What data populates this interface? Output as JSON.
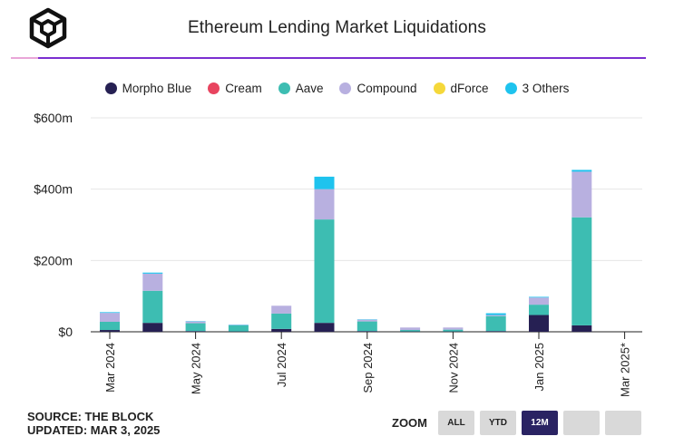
{
  "header": {
    "title": "Ethereum Lending Market Liquidations"
  },
  "legend": [
    {
      "label": "Morpho Blue",
      "color": "#262053"
    },
    {
      "label": "Cream",
      "color": "#e8445f"
    },
    {
      "label": "Aave",
      "color": "#3dbdb2"
    },
    {
      "label": "Compound",
      "color": "#b8b0e0"
    },
    {
      "label": "dForce",
      "color": "#f5d83a"
    },
    {
      "label": "3 Others",
      "color": "#1ec3ee"
    }
  ],
  "footer": {
    "source": "SOURCE: THE BLOCK",
    "updated": "UPDATED: MAR 3, 2025"
  },
  "zoom": {
    "label": "ZOOM",
    "buttons": [
      "ALL",
      "YTD",
      "12M"
    ],
    "active": "12M"
  },
  "chart_data": {
    "type": "bar",
    "stacked": true,
    "title": "Ethereum Lending Market Liquidations",
    "ylabel": "",
    "ylim": [
      0,
      600
    ],
    "yticks": [
      "$0",
      "$200m",
      "$400m",
      "$600m"
    ],
    "xtick_labels": [
      "Mar 2024",
      "May 2024",
      "Jul 2024",
      "Sep 2024",
      "Nov 2024",
      "Jan 2025",
      "Mar 2025*"
    ],
    "categories": [
      "Mar 2024",
      "Apr 2024",
      "May 2024",
      "Jun 2024",
      "Jul 2024",
      "Aug 2024",
      "Sep 2024",
      "Oct 2024",
      "Nov 2024",
      "Dec 2024",
      "Jan 2025",
      "Feb 2025"
    ],
    "series": [
      {
        "name": "Morpho Blue",
        "color": "#262053",
        "values": [
          5,
          25,
          2,
          1,
          8,
          25,
          2,
          1,
          1,
          2,
          47,
          18
        ]
      },
      {
        "name": "Cream",
        "color": "#e8445f",
        "values": [
          0,
          0,
          0,
          0,
          0,
          0,
          0,
          0,
          0,
          0,
          0,
          0
        ]
      },
      {
        "name": "Aave",
        "color": "#3dbdb2",
        "values": [
          23,
          90,
          22,
          17,
          43,
          290,
          27,
          4,
          5,
          42,
          29,
          303
        ]
      },
      {
        "name": "Compound",
        "color": "#b8b0e0",
        "values": [
          25,
          48,
          5,
          1,
          22,
          85,
          5,
          7,
          6,
          3,
          20,
          128
        ]
      },
      {
        "name": "dForce",
        "color": "#f5d83a",
        "values": [
          0,
          0,
          0,
          0,
          0,
          0,
          0,
          0,
          0,
          0,
          0,
          0
        ]
      },
      {
        "name": "3 Others",
        "color": "#1ec3ee",
        "values": [
          2,
          3,
          1,
          1,
          0,
          35,
          1,
          0,
          0,
          5,
          2,
          5
        ]
      }
    ]
  }
}
